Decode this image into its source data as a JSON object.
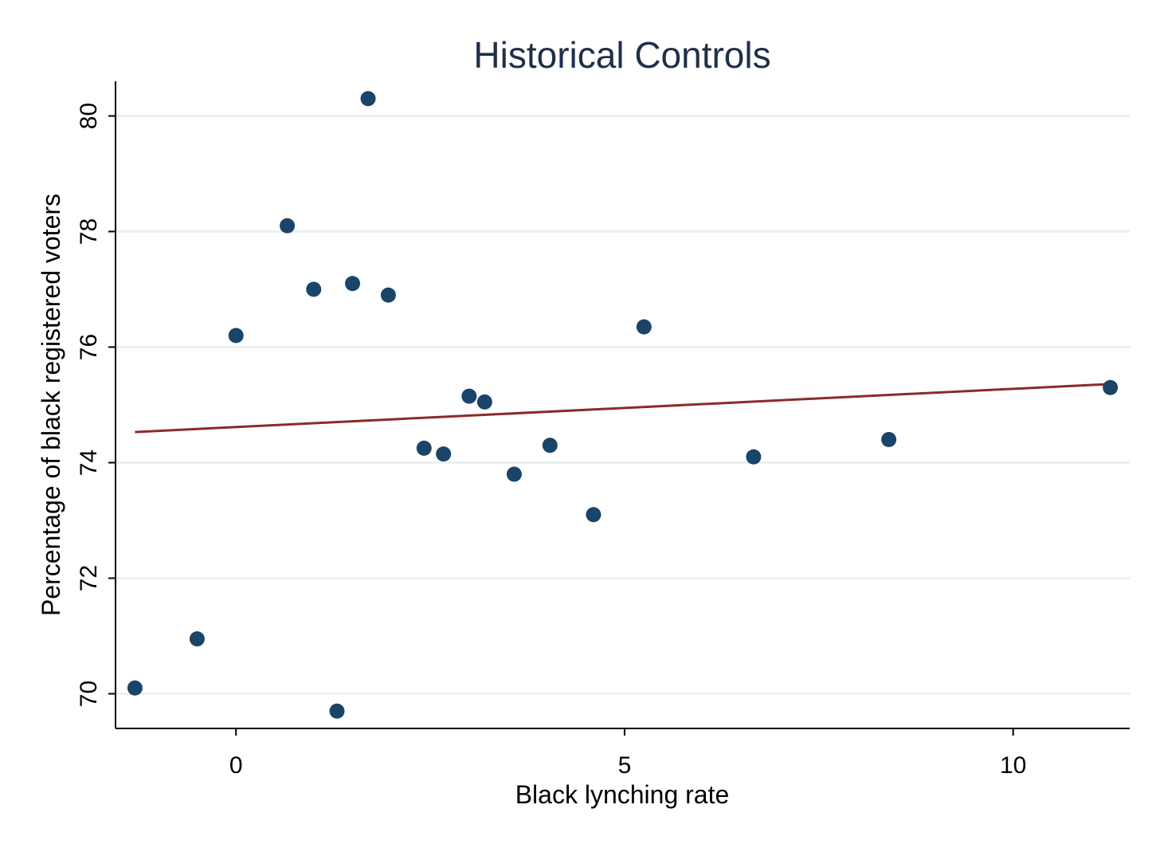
{
  "chart_data": {
    "type": "scatter",
    "title": "Historical Controls",
    "xlabel": "Black lynching rate",
    "ylabel": "Percentage of black registered voters",
    "xlim": [
      -1.55,
      11.5
    ],
    "ylim": [
      69.4,
      80.6
    ],
    "xticks": [
      0,
      5,
      10
    ],
    "yticks": [
      70,
      72,
      74,
      76,
      78,
      80
    ],
    "grid": "horizontal",
    "legend": "none",
    "colors": {
      "points": "#1a4468",
      "fit_line": "#8b2a2a",
      "title": "#1f2f4a",
      "grid": "#e6efee"
    },
    "series": [
      {
        "points": [
          [
            -1.3,
            70.1
          ],
          [
            -0.5,
            70.95
          ],
          [
            0.0,
            76.2
          ],
          [
            0.66,
            78.1
          ],
          [
            1.0,
            77.0
          ],
          [
            1.3,
            69.7
          ],
          [
            1.5,
            77.1
          ],
          [
            1.7,
            80.3
          ],
          [
            1.96,
            76.9
          ],
          [
            2.42,
            74.25
          ],
          [
            2.67,
            74.15
          ],
          [
            3.0,
            75.15
          ],
          [
            3.2,
            75.05
          ],
          [
            3.58,
            73.8
          ],
          [
            4.04,
            74.3
          ],
          [
            4.6,
            73.1
          ],
          [
            5.25,
            76.35
          ],
          [
            6.66,
            74.1
          ],
          [
            8.4,
            74.4
          ],
          [
            11.25,
            75.3
          ]
        ]
      }
    ],
    "fit_line": {
      "x": [
        -1.3,
        11.25
      ],
      "y": [
        74.53,
        75.36
      ]
    }
  }
}
